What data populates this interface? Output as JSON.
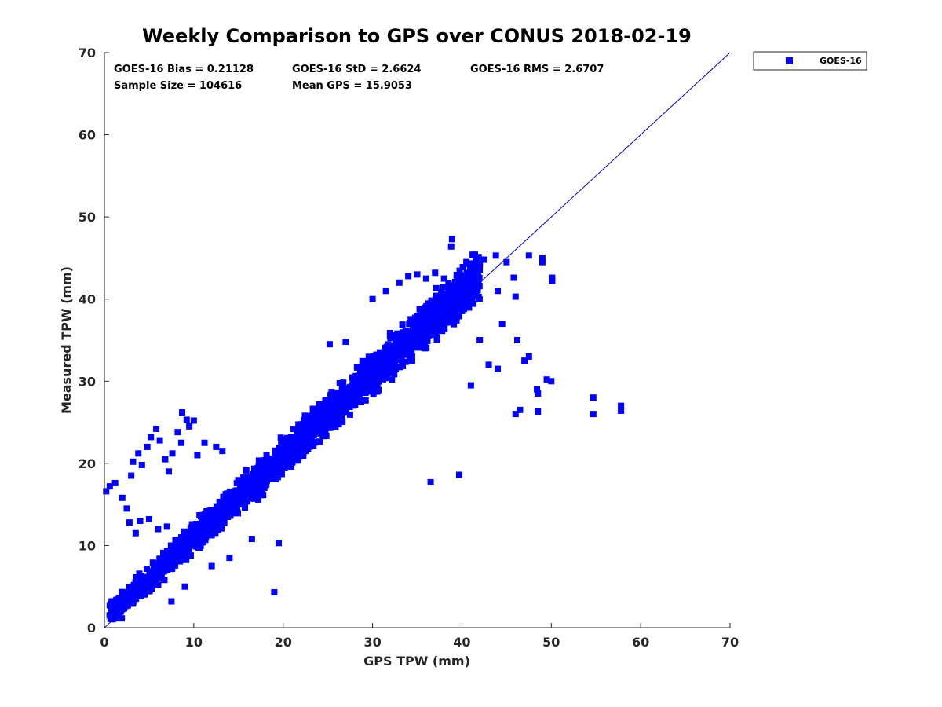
{
  "chart_data": {
    "type": "scatter",
    "title": "Weekly Comparison to GPS over CONUS 2018-02-19",
    "xlabel": "GPS TPW (mm)",
    "ylabel": "Measured TPW (mm)",
    "xlim": [
      0,
      70
    ],
    "ylim": [
      0,
      70
    ],
    "xticks": [
      "0",
      "10",
      "20",
      "30",
      "40",
      "50",
      "60",
      "70"
    ],
    "yticks": [
      "0",
      "10",
      "20",
      "30",
      "40",
      "50",
      "60",
      "70"
    ],
    "grid": false,
    "legend_position": "outside-top-right",
    "stats": {
      "bias": "GOES-16 Bias = 0.21128",
      "std": "GOES-16 StD = 2.6624",
      "rms": "GOES-16 RMS = 2.6707",
      "sample_size": "Sample Size = 104616",
      "mean_gps": "Mean GPS = 15.9053"
    },
    "reference_line": {
      "name": "1:1 line",
      "from": [
        0,
        0
      ],
      "to": [
        70,
        70
      ],
      "color": "#0000CC"
    },
    "series": [
      {
        "name": "GOES-16",
        "color": "#0000FF",
        "marker": "square",
        "core_band": {
          "x_range": [
            0.5,
            42
          ],
          "half_width": 3.2
        },
        "points": [
          [
            0.2,
            16.6
          ],
          [
            0.6,
            17.2
          ],
          [
            1.2,
            17.6
          ],
          [
            2.0,
            15.8
          ],
          [
            2.5,
            14.5
          ],
          [
            3.0,
            18.5
          ],
          [
            3.2,
            20.2
          ],
          [
            3.8,
            21.2
          ],
          [
            4.2,
            19.8
          ],
          [
            4.8,
            22.0
          ],
          [
            5.2,
            23.2
          ],
          [
            5.8,
            24.2
          ],
          [
            6.2,
            22.8
          ],
          [
            6.8,
            20.5
          ],
          [
            7.2,
            19.0
          ],
          [
            7.6,
            21.2
          ],
          [
            8.2,
            23.8
          ],
          [
            8.6,
            22.5
          ],
          [
            8.7,
            26.2
          ],
          [
            9.2,
            25.3
          ],
          [
            9.5,
            24.5
          ],
          [
            10.0,
            25.2
          ],
          [
            10.4,
            21.0
          ],
          [
            11.2,
            22.5
          ],
          [
            12.5,
            22.0
          ],
          [
            13.2,
            21.5
          ],
          [
            4.0,
            13.0
          ],
          [
            5.0,
            13.2
          ],
          [
            2.8,
            12.8
          ],
          [
            3.5,
            11.5
          ],
          [
            6.0,
            12.0
          ],
          [
            7.0,
            12.3
          ],
          [
            25.2,
            34.5
          ],
          [
            27.0,
            34.8
          ],
          [
            30.0,
            40.0
          ],
          [
            31.5,
            41.0
          ],
          [
            33.0,
            42.0
          ],
          [
            34.0,
            42.8
          ],
          [
            35.0,
            43.0
          ],
          [
            36.0,
            42.5
          ],
          [
            37.0,
            43.2
          ],
          [
            38.0,
            42.5
          ],
          [
            38.8,
            46.4
          ],
          [
            38.9,
            47.3
          ],
          [
            40.5,
            44.5
          ],
          [
            41.2,
            45.4
          ],
          [
            42.5,
            44.8
          ],
          [
            43.8,
            45.3
          ],
          [
            45.0,
            44.5
          ],
          [
            45.8,
            42.6
          ],
          [
            44.0,
            41.0
          ],
          [
            46.0,
            40.3
          ],
          [
            47.5,
            45.3
          ],
          [
            49.0,
            45.0
          ],
          [
            49.0,
            44.5
          ],
          [
            50.1,
            42.2
          ],
          [
            50.1,
            42.6
          ],
          [
            44.5,
            37.0
          ],
          [
            46.2,
            35.0
          ],
          [
            47.0,
            32.5
          ],
          [
            47.5,
            33.0
          ],
          [
            48.5,
            28.5
          ],
          [
            48.4,
            29.0
          ],
          [
            50.0,
            30.0
          ],
          [
            49.5,
            30.2
          ],
          [
            46.0,
            26.0
          ],
          [
            46.5,
            26.5
          ],
          [
            48.5,
            26.3
          ],
          [
            54.7,
            28.0
          ],
          [
            54.7,
            26.0
          ],
          [
            57.8,
            27.0
          ],
          [
            57.8,
            26.4
          ],
          [
            39.7,
            18.6
          ],
          [
            36.5,
            17.7
          ],
          [
            19.0,
            4.3
          ],
          [
            19.5,
            10.3
          ],
          [
            16.5,
            10.8
          ],
          [
            14.0,
            8.5
          ],
          [
            12.0,
            7.5
          ],
          [
            9.0,
            5.0
          ],
          [
            7.5,
            3.2
          ],
          [
            43.0,
            32.0
          ],
          [
            41.0,
            29.5
          ],
          [
            44.0,
            31.5
          ],
          [
            42.0,
            35.0
          ]
        ]
      }
    ]
  }
}
